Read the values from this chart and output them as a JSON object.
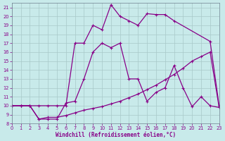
{
  "background_color": "#c8eaea",
  "grid_color": "#a8c8c8",
  "line_color": "#880088",
  "xlabel": "Windchill (Refroidissement éolien,°C)",
  "xlim": [
    0,
    23
  ],
  "ylim": [
    8,
    21.5
  ],
  "xticks": [
    0,
    1,
    2,
    3,
    4,
    5,
    6,
    7,
    8,
    9,
    10,
    11,
    12,
    13,
    14,
    15,
    16,
    17,
    18,
    19,
    20,
    21,
    22,
    23
  ],
  "yticks": [
    8,
    9,
    10,
    11,
    12,
    13,
    14,
    15,
    16,
    17,
    18,
    19,
    20,
    21
  ],
  "curve_top_x": [
    0,
    1,
    2,
    3,
    4,
    5,
    6,
    7,
    8,
    9,
    10,
    11,
    12,
    13,
    14,
    15,
    16,
    17,
    18,
    22,
    23
  ],
  "curve_top_y": [
    10,
    10,
    10,
    10,
    10,
    10,
    10,
    17,
    17,
    19,
    18.5,
    21.3,
    20,
    19.5,
    19,
    20.3,
    20.2,
    20.2,
    19.5,
    17.2,
    10
  ],
  "curve_mid_x": [
    0,
    1,
    2,
    3,
    4,
    5,
    6,
    7,
    8,
    9,
    10,
    11,
    12,
    13,
    14,
    15,
    16,
    17,
    18,
    19,
    20,
    21,
    22,
    23
  ],
  "curve_mid_y": [
    10,
    10,
    10,
    8.5,
    8.5,
    8.5,
    10.3,
    10.5,
    13,
    16,
    17,
    16.5,
    17,
    13,
    13,
    10.5,
    11.5,
    12,
    14.5,
    12,
    9.9,
    11,
    10,
    9.8
  ],
  "curve_bot_x": [
    0,
    1,
    2,
    3,
    4,
    5,
    6,
    7,
    8,
    9,
    10,
    11,
    12,
    13,
    14,
    15,
    16,
    17,
    18,
    19,
    20,
    21,
    22,
    23
  ],
  "curve_bot_y": [
    10,
    10,
    10,
    8.5,
    8.7,
    8.7,
    8.9,
    9.2,
    9.5,
    9.7,
    9.9,
    10.2,
    10.5,
    10.9,
    11.3,
    11.8,
    12.3,
    12.9,
    13.5,
    14.2,
    15.0,
    15.5,
    16.0,
    9.8
  ],
  "marker": "+",
  "markersize": 3.5,
  "linewidth": 0.9,
  "tick_labelsize": 4.8,
  "xlabel_fontsize": 5.5
}
